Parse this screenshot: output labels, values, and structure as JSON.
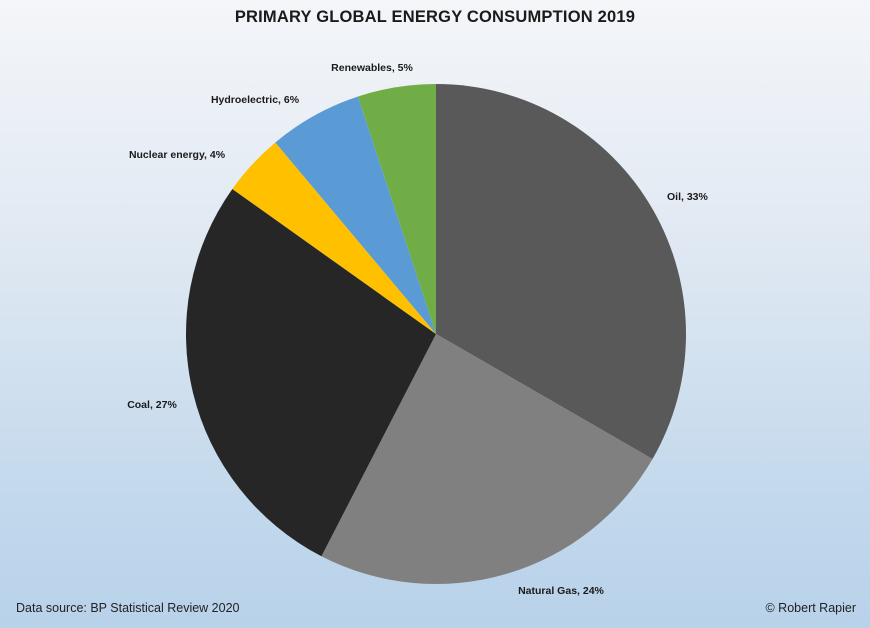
{
  "chart_data": {
    "type": "pie",
    "title": "PRIMARY GLOBAL ENERGY CONSUMPTION 2019",
    "start": "12 o'clock, clockwise",
    "slices": [
      {
        "label": "Oil",
        "value": 33,
        "display": "Oil, 33%",
        "color": "#595959"
      },
      {
        "label": "Natural Gas",
        "value": 24,
        "display": "Natural Gas, 24%",
        "color": "#808080"
      },
      {
        "label": "Coal",
        "value": 27,
        "display": "Coal, 27%",
        "color": "#262626"
      },
      {
        "label": "Nuclear energy",
        "value": 4,
        "display": "Nuclear energy, 4%",
        "color": "#ffc000"
      },
      {
        "label": "Hydroelectric",
        "value": 6,
        "display": "Hydroelectric, 6%",
        "color": "#5b9bd5"
      },
      {
        "label": "Renewables",
        "value": 5,
        "display": "Renewables, 5%",
        "color": "#70ad47"
      }
    ],
    "legend": "none, data labels outside"
  },
  "footer": {
    "source": "Data source: BP Statistical Review 2020",
    "credit": "© Robert Rapier"
  }
}
